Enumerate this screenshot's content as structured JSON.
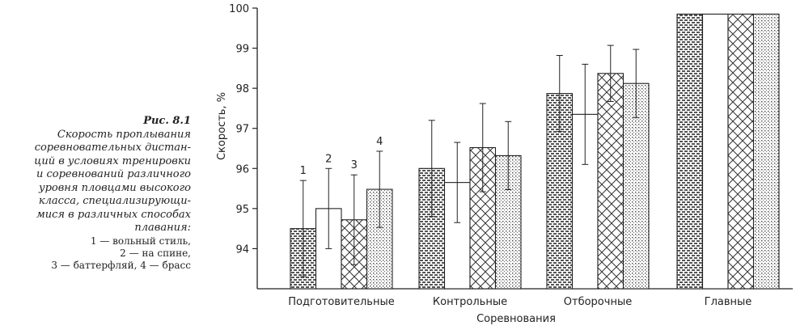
{
  "caption": {
    "figure_label": "Рис. 8.1",
    "text_lines": [
      "Скорость проплывания",
      "соревновательных дистан-",
      "ций в условиях тренировки",
      "и соревнований различного",
      "уровня пловцами высокого",
      "класса, специализирующи-",
      "мися в различных способах",
      "плавания:"
    ],
    "legend_lines": [
      "1 — вольный стиль,",
      "2 — на спине,",
      "3 — баттерфляй, 4 — брасс"
    ]
  },
  "chart_data": {
    "type": "bar",
    "xlabel": "Соревнования",
    "ylabel": "Скорость, %",
    "ylim": [
      93,
      100
    ],
    "yticks": [
      94,
      95,
      96,
      97,
      98,
      99,
      100
    ],
    "categories": [
      "Подготовительные",
      "Контрольные",
      "Отборочные",
      "Главные"
    ],
    "bar_numbers": [
      "1",
      "2",
      "3",
      "4"
    ],
    "grid": false,
    "series": [
      {
        "pattern": "brick",
        "values": [
          94.5,
          96.0,
          97.87,
          99.85
        ],
        "err": [
          1.2,
          1.2,
          0.95,
          null
        ]
      },
      {
        "pattern": "white",
        "values": [
          95.0,
          95.65,
          97.35,
          99.85
        ],
        "err": [
          1.0,
          1.0,
          1.25,
          null
        ]
      },
      {
        "pattern": "crosshatch",
        "values": [
          94.72,
          96.52,
          98.37,
          99.85
        ],
        "err": [
          1.12,
          1.1,
          0.7,
          null
        ]
      },
      {
        "pattern": "dots",
        "values": [
          95.48,
          96.32,
          98.12,
          99.85
        ],
        "err": [
          0.95,
          0.85,
          0.85,
          null
        ]
      }
    ]
  }
}
